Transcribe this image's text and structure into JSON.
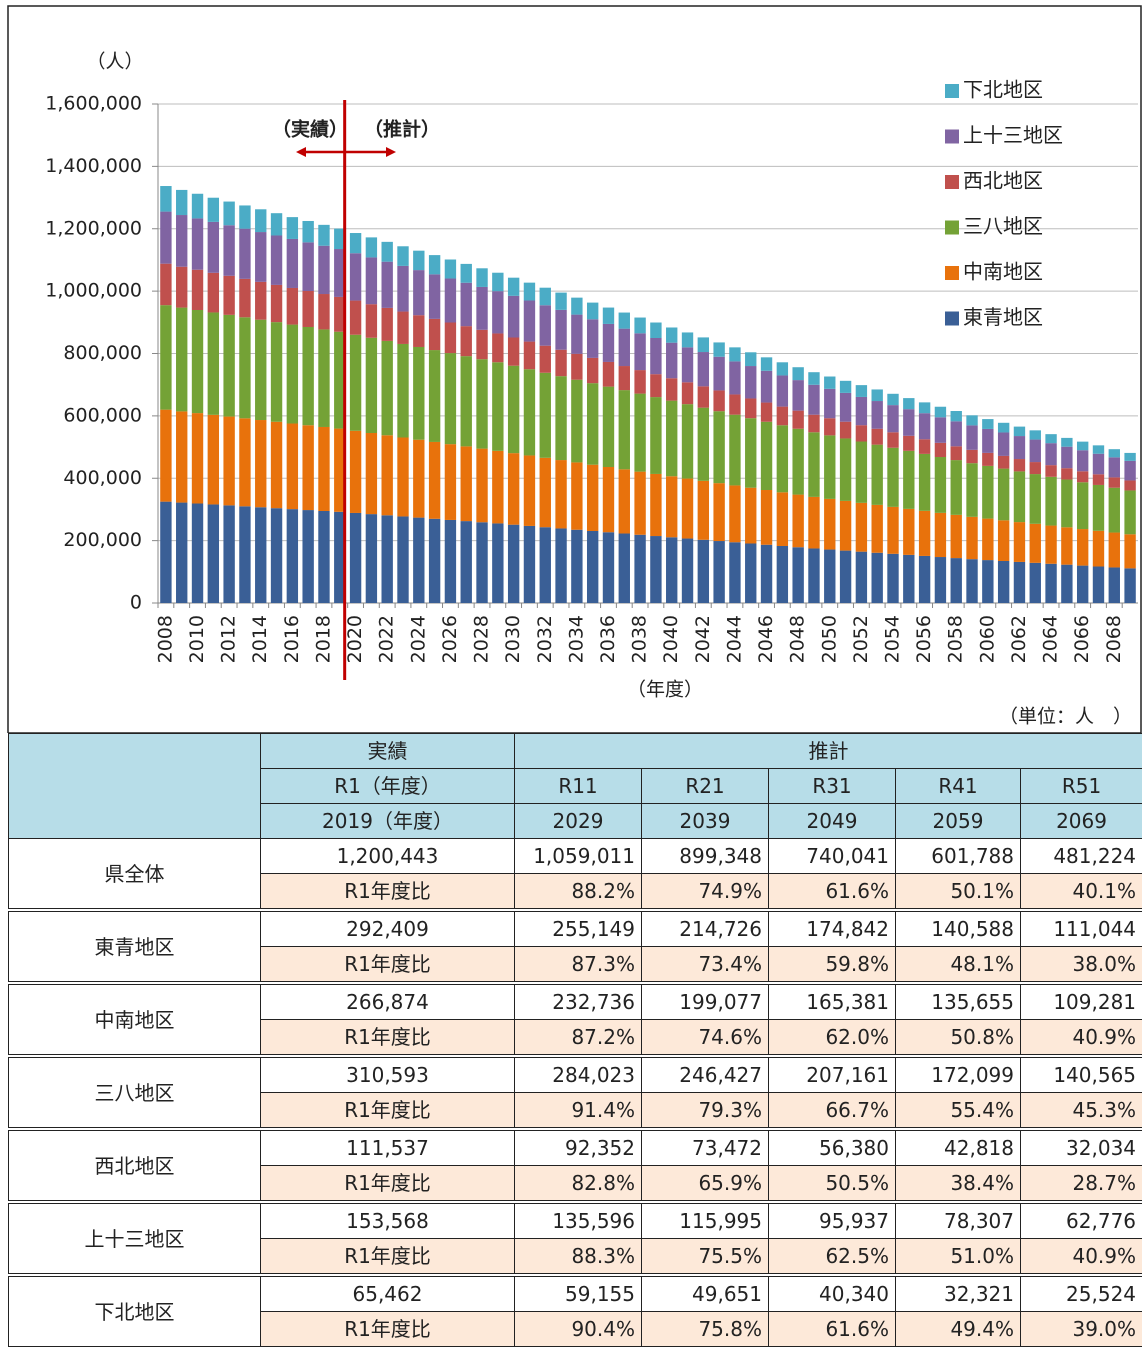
{
  "chart_data": {
    "type": "stacked_bar",
    "ylabel": "（人）",
    "xlabel": "（年度）",
    "unit_note": "（単位：人　）",
    "annotations": [
      "（実績）",
      "（推計）"
    ],
    "categories": [
      "2008",
      null,
      "2010",
      null,
      "2012",
      null,
      "2014",
      null,
      "2016",
      null,
      "2018",
      null,
      "2020",
      null,
      "2022",
      null,
      "2024",
      null,
      "2026",
      null,
      "2028",
      null,
      "2030",
      null,
      "2032",
      null,
      "2034",
      null,
      "2036",
      null,
      "2038",
      null,
      "2040",
      null,
      "2042",
      null,
      "2044",
      null,
      "2046",
      null,
      "2048",
      null,
      "2050",
      null,
      "2052",
      null,
      "2054",
      null,
      "2056",
      null,
      "2058",
      null,
      "2060",
      null,
      "2062",
      null,
      "2064",
      null,
      "2066",
      null,
      "2068",
      null
    ],
    "ylim": [
      0,
      1600000
    ],
    "yticks": [
      0,
      {
        "value": 200000,
        "label": "200,000"
      },
      {
        "value": 400000,
        "label": "400,000"
      },
      {
        "value": 600000,
        "label": "600,000"
      },
      {
        "value": 800000,
        "label": "800,000"
      },
      {
        "value": 1000000,
        "label": "1,000,000"
      },
      {
        "value": 1200000,
        "label": "1,200,000"
      },
      {
        "value": 1400000,
        "label": "1,400,000"
      },
      {
        "value": 1600000,
        "label": "1,600,000"
      }
    ],
    "grid": true,
    "legend": "upper right",
    "series": [
      {
        "name": "東青地区",
        "color": "#3a5f96",
        "values": [
          325000,
          322000,
          319000,
          316000,
          313000,
          310000,
          307000,
          304000,
          301000,
          298000,
          295000,
          292409,
          288700,
          285000,
          281200,
          277500,
          273800,
          270000,
          266300,
          262600,
          258900,
          255149,
          251100,
          247100,
          243000,
          239000,
          234900,
          230900,
          226900,
          222800,
          218800,
          214726,
          210700,
          206700,
          202700,
          198700,
          194800,
          190800,
          186800,
          182800,
          178800,
          174842,
          171400,
          168000,
          164600,
          161100,
          157700,
          154300,
          150900,
          147400,
          144000,
          140588,
          137600,
          134700,
          131700,
          128800,
          125800,
          122900,
          119900,
          117000,
          114000,
          111044
        ]
      },
      {
        "name": "中南地区",
        "color": "#e8720c",
        "values": [
          295000,
          292400,
          289900,
          287300,
          284800,
          282200,
          279700,
          277100,
          274500,
          272000,
          269400,
          266874,
          263500,
          260100,
          256600,
          253200,
          249800,
          246400,
          243000,
          239600,
          236100,
          232736,
          229400,
          226000,
          222600,
          219300,
          215900,
          212500,
          209200,
          205800,
          202400,
          199077,
          195700,
          192300,
          189000,
          185600,
          182200,
          178900,
          175500,
          172100,
          168800,
          165381,
          162400,
          159400,
          156500,
          153500,
          150500,
          147500,
          144600,
          141600,
          138600,
          135655,
          133000,
          130400,
          127700,
          125100,
          122500,
          119800,
          117200,
          114600,
          111900,
          109281
        ]
      },
      {
        "name": "三八地区",
        "color": "#74a236",
        "values": [
          335000,
          332800,
          330600,
          328300,
          326100,
          323900,
          321700,
          319500,
          317200,
          315000,
          312800,
          310593,
          307900,
          305300,
          302600,
          299900,
          297300,
          294600,
          292000,
          289300,
          286700,
          284023,
          280300,
          276500,
          272700,
          269000,
          265200,
          261500,
          257700,
          254000,
          250200,
          246427,
          242500,
          238600,
          234600,
          230700,
          226800,
          222900,
          218900,
          215000,
          211100,
          207161,
          203700,
          200200,
          196700,
          193100,
          189600,
          186100,
          182600,
          179100,
          175600,
          172099,
          169000,
          165800,
          162600,
          159500,
          156300,
          153200,
          150000,
          146900,
          143700,
          140565
        ]
      },
      {
        "name": "西北地区",
        "color": "#c0504d",
        "values": [
          133000,
          131000,
          129100,
          127100,
          125200,
          123200,
          121300,
          119300,
          117400,
          115400,
          113500,
          111537,
          109600,
          107700,
          105800,
          103900,
          101900,
          100000,
          98100,
          96200,
          94300,
          92352,
          90500,
          88600,
          86700,
          84800,
          82900,
          81000,
          79100,
          77200,
          75400,
          73472,
          71800,
          70100,
          68400,
          66600,
          64900,
          63200,
          61500,
          59800,
          58100,
          56380,
          55000,
          53700,
          52300,
          51000,
          49600,
          48200,
          46900,
          45500,
          44200,
          42818,
          41700,
          40700,
          39600,
          38500,
          37400,
          36300,
          35300,
          34200,
          33100,
          32034
        ]
      },
      {
        "name": "上十三地区",
        "color": "#8064a2",
        "values": [
          167000,
          165800,
          164600,
          163300,
          162100,
          160900,
          159700,
          158500,
          157200,
          156000,
          154800,
          153568,
          151800,
          150000,
          148200,
          146400,
          144600,
          142800,
          141000,
          139200,
          137400,
          135596,
          133600,
          131700,
          129700,
          127800,
          125800,
          123800,
          121900,
          119900,
          117900,
          115995,
          114000,
          112000,
          110000,
          108000,
          106000,
          104000,
          101900,
          99900,
          97900,
          95937,
          94200,
          92400,
          90600,
          88900,
          87100,
          85400,
          83600,
          81800,
          80100,
          78307,
          76800,
          75200,
          73700,
          72100,
          70500,
          69000,
          67400,
          65900,
          64300,
          62776
        ]
      },
      {
        "name": "下北地区",
        "color": "#4bacc6",
        "values": [
          82000,
          80500,
          79000,
          77500,
          76000,
          74500,
          73000,
          71500,
          70000,
          68500,
          67000,
          65462,
          64800,
          64200,
          63600,
          62900,
          62300,
          61700,
          61000,
          60400,
          59800,
          59155,
          58200,
          57300,
          56300,
          55400,
          54400,
          53500,
          52500,
          51600,
          50600,
          49651,
          48700,
          47800,
          46900,
          45900,
          45000,
          44100,
          43100,
          42200,
          41300,
          40340,
          39500,
          38700,
          37900,
          37100,
          36300,
          35500,
          34700,
          33900,
          33100,
          32321,
          31600,
          31000,
          30300,
          29600,
          28900,
          28200,
          27600,
          26900,
          26200,
          25524
        ]
      }
    ]
  },
  "table": {
    "group_headers": [
      "実績",
      "推計"
    ],
    "era_headers": [
      "R1（年度）",
      "R11",
      "R21",
      "R31",
      "R41",
      "R51"
    ],
    "year_headers": [
      "2019（年度）",
      "2029",
      "2039",
      "2049",
      "2059",
      "2069"
    ],
    "rows": [
      {
        "name": "県全体",
        "values": [
          "1,200,443",
          "1,059,011",
          "899,348",
          "740,041",
          "601,788",
          "481,224"
        ],
        "ratio_label": "R1年度比",
        "ratios": [
          "88.2%",
          "74.9%",
          "61.6%",
          "50.1%",
          "40.1%"
        ]
      },
      {
        "name": "東青地区",
        "values": [
          "292,409",
          "255,149",
          "214,726",
          "174,842",
          "140,588",
          "111,044"
        ],
        "ratio_label": "R1年度比",
        "ratios": [
          "87.3%",
          "73.4%",
          "59.8%",
          "48.1%",
          "38.0%"
        ]
      },
      {
        "name": "中南地区",
        "values": [
          "266,874",
          "232,736",
          "199,077",
          "165,381",
          "135,655",
          "109,281"
        ],
        "ratio_label": "R1年度比",
        "ratios": [
          "87.2%",
          "74.6%",
          "62.0%",
          "50.8%",
          "40.9%"
        ]
      },
      {
        "name": "三八地区",
        "values": [
          "310,593",
          "284,023",
          "246,427",
          "207,161",
          "172,099",
          "140,565"
        ],
        "ratio_label": "R1年度比",
        "ratios": [
          "91.4%",
          "79.3%",
          "66.7%",
          "55.4%",
          "45.3%"
        ]
      },
      {
        "name": "西北地区",
        "values": [
          "111,537",
          "92,352",
          "73,472",
          "56,380",
          "42,818",
          "32,034"
        ],
        "ratio_label": "R1年度比",
        "ratios": [
          "82.8%",
          "65.9%",
          "50.5%",
          "38.4%",
          "28.7%"
        ]
      },
      {
        "name": "上十三地区",
        "values": [
          "153,568",
          "135,596",
          "115,995",
          "95,937",
          "78,307",
          "62,776"
        ],
        "ratio_label": "R1年度比",
        "ratios": [
          "88.3%",
          "75.5%",
          "62.5%",
          "51.0%",
          "40.9%"
        ]
      },
      {
        "name": "下北地区",
        "values": [
          "65,462",
          "59,155",
          "49,651",
          "40,340",
          "32,321",
          "25,524"
        ],
        "ratio_label": "R1年度比",
        "ratios": [
          "90.4%",
          "75.8%",
          "61.6%",
          "49.4%",
          "39.0%"
        ]
      }
    ]
  }
}
